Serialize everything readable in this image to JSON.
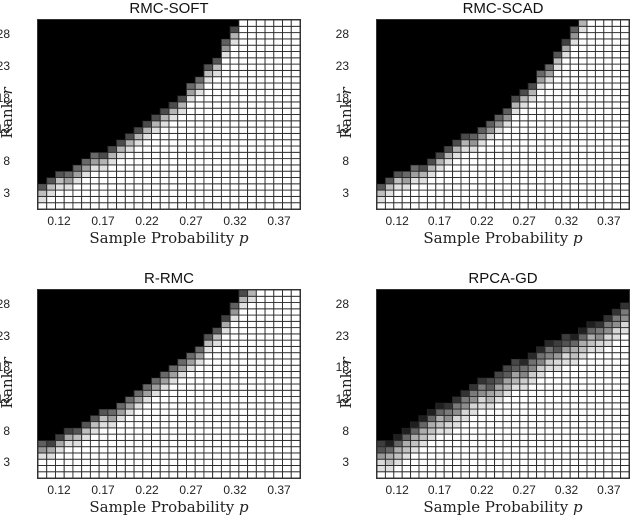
{
  "chart_data": [
    {
      "type": "heatmap",
      "title": "RMC-SOFT",
      "xlabel": "Sample Probability",
      "xlabel_var": "p",
      "ylabel": "Rank",
      "ylabel_var": "r",
      "x": [
        0.1,
        0.11,
        0.12,
        0.13,
        0.14,
        0.15,
        0.16,
        0.17,
        0.18,
        0.19,
        0.2,
        0.21,
        0.22,
        0.23,
        0.24,
        0.25,
        0.26,
        0.27,
        0.28,
        0.29,
        0.3,
        0.31,
        0.32,
        0.33,
        0.34,
        0.35,
        0.36,
        0.37,
        0.38,
        0.39
      ],
      "y_range": [
        1,
        30
      ],
      "xticks": [
        "0.12",
        "0.17",
        "0.22",
        "0.27",
        "0.32",
        "0.37"
      ],
      "yticks": [
        "3",
        "8",
        "13",
        "18",
        "23",
        "28"
      ],
      "colormap": "gray (white = success, black = failure)",
      "grid": true,
      "success_threshold_rank": [
        2,
        3,
        4,
        4,
        5,
        6,
        7,
        7,
        8,
        9,
        10,
        11,
        12,
        13,
        14,
        15,
        16,
        18,
        19,
        21,
        22,
        25,
        27,
        30,
        30,
        30,
        30,
        30,
        30,
        30
      ],
      "transition_width": 2
    },
    {
      "type": "heatmap",
      "title": "RMC-SCAD",
      "xlabel": "Sample Probability",
      "xlabel_var": "p",
      "ylabel": "Rank",
      "ylabel_var": "r",
      "x": [
        0.1,
        0.11,
        0.12,
        0.13,
        0.14,
        0.15,
        0.16,
        0.17,
        0.18,
        0.19,
        0.2,
        0.21,
        0.22,
        0.23,
        0.24,
        0.25,
        0.26,
        0.27,
        0.28,
        0.29,
        0.3,
        0.31,
        0.32,
        0.33,
        0.34,
        0.35,
        0.36,
        0.37,
        0.38,
        0.39
      ],
      "y_range": [
        1,
        30
      ],
      "xticks": [
        "0.12",
        "0.17",
        "0.22",
        "0.27",
        "0.32",
        "0.37"
      ],
      "yticks": [
        "3",
        "8",
        "13",
        "18",
        "23",
        "28"
      ],
      "colormap": "gray (white = success, black = failure)",
      "grid": true,
      "success_threshold_rank": [
        2,
        3,
        4,
        4,
        5,
        5,
        6,
        7,
        8,
        9,
        10,
        10,
        11,
        12,
        13,
        14,
        16,
        17,
        18,
        20,
        21,
        23,
        25,
        27,
        29,
        30,
        30,
        30,
        30,
        30
      ],
      "transition_width": 2
    },
    {
      "type": "heatmap",
      "title": "R-RMC",
      "xlabel": "Sample Probability",
      "xlabel_var": "p",
      "ylabel": "Rank",
      "ylabel_var": "r",
      "x": [
        0.1,
        0.11,
        0.12,
        0.13,
        0.14,
        0.15,
        0.16,
        0.17,
        0.18,
        0.19,
        0.2,
        0.21,
        0.22,
        0.23,
        0.24,
        0.25,
        0.26,
        0.27,
        0.28,
        0.29,
        0.3,
        0.31,
        0.32,
        0.33,
        0.34,
        0.35,
        0.36,
        0.37,
        0.38,
        0.39
      ],
      "y_range": [
        1,
        30
      ],
      "xticks": [
        "0.12",
        "0.17",
        "0.22",
        "0.27",
        "0.32",
        "0.37"
      ],
      "yticks": [
        "3",
        "8",
        "13",
        "18",
        "23",
        "28"
      ],
      "colormap": "gray (white = success, black = failure)",
      "grid": true,
      "success_threshold_rank": [
        4,
        4,
        5,
        6,
        6,
        7,
        8,
        9,
        9,
        10,
        11,
        12,
        13,
        14,
        15,
        16,
        17,
        18,
        19,
        21,
        22,
        24,
        26,
        28,
        29,
        30,
        30,
        30,
        30,
        30
      ],
      "transition_width": 2
    },
    {
      "type": "heatmap",
      "title": "RPCA-GD",
      "xlabel": "Sample Probability",
      "xlabel_var": "p",
      "ylabel": "Rank",
      "ylabel_var": "r",
      "x": [
        0.1,
        0.11,
        0.12,
        0.13,
        0.14,
        0.15,
        0.16,
        0.17,
        0.18,
        0.19,
        0.2,
        0.21,
        0.22,
        0.23,
        0.24,
        0.25,
        0.26,
        0.27,
        0.28,
        0.29,
        0.3,
        0.31,
        0.32,
        0.33,
        0.34,
        0.35,
        0.36,
        0.37,
        0.38,
        0.39
      ],
      "y_range": [
        1,
        30
      ],
      "xticks": [
        "0.12",
        "0.17",
        "0.22",
        "0.27",
        "0.32",
        "0.37"
      ],
      "yticks": [
        "3",
        "8",
        "13",
        "18",
        "23",
        "28"
      ],
      "colormap": "gray (white = success, black = failure)",
      "grid": true,
      "success_threshold_rank": [
        2,
        2,
        3,
        4,
        5,
        6,
        7,
        8,
        8,
        9,
        10,
        11,
        12,
        12,
        13,
        14,
        15,
        15,
        16,
        17,
        18,
        18,
        19,
        19,
        20,
        21,
        21,
        22,
        23,
        24
      ],
      "transition_width": 4
    }
  ],
  "panels": [
    {
      "title": "RMC-SOFT",
      "xlabel": "Sample Probability ",
      "xvar": "p",
      "ylabel": "Rank ",
      "yvar": "r"
    },
    {
      "title": "RMC-SCAD",
      "xlabel": "Sample Probability ",
      "xvar": "p",
      "ylabel": "Rank ",
      "yvar": "r"
    },
    {
      "title": "R-RMC",
      "xlabel": "Sample Probability ",
      "xvar": "p",
      "ylabel": "Rank ",
      "yvar": "r"
    },
    {
      "title": "RPCA-GD",
      "xlabel": "Sample Probability ",
      "xvar": "p",
      "ylabel": "Rank ",
      "yvar": "r"
    }
  ]
}
